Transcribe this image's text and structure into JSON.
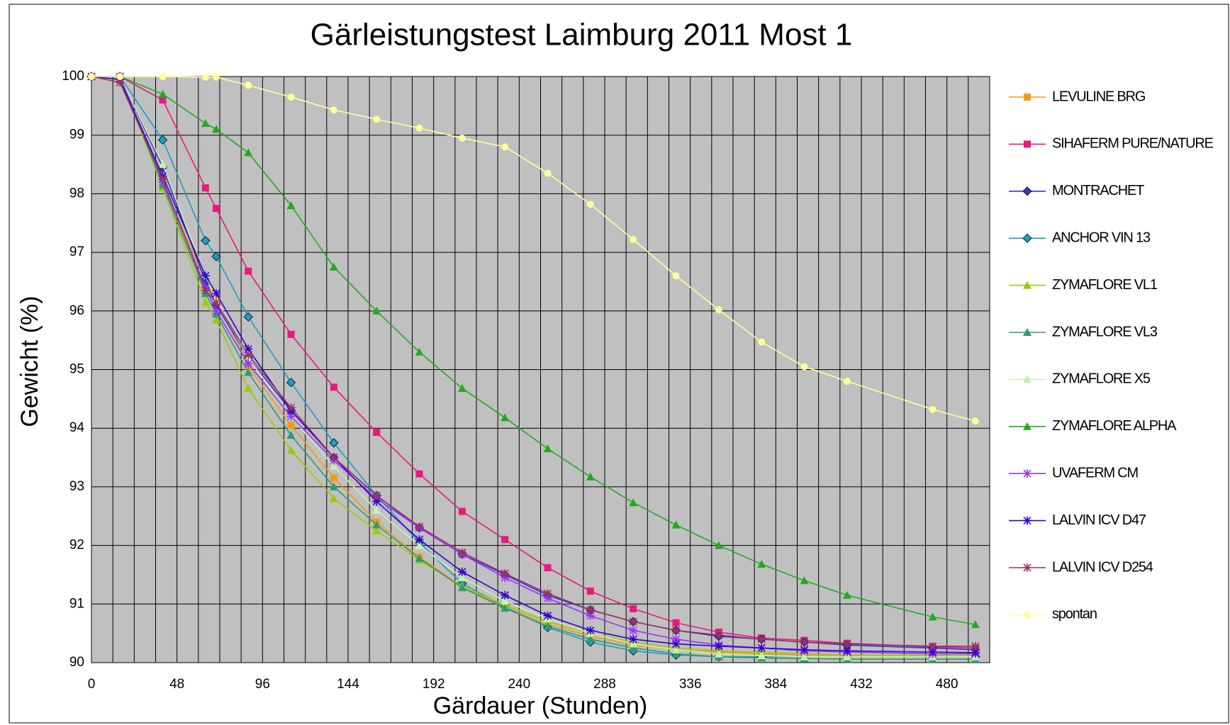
{
  "chart_data": {
    "type": "line",
    "title": "Gärleistungstest Laimburg 2011 Most 1",
    "xlabel": "Gärdauer (Stunden)",
    "ylabel": "Gewicht (%)",
    "x": [
      0,
      16,
      40,
      64,
      70,
      88,
      112,
      136,
      160,
      184,
      208,
      232,
      256,
      280,
      304,
      328,
      352,
      376,
      400,
      424,
      472,
      496
    ],
    "xlim": [
      0,
      504
    ],
    "ylim": [
      90,
      100
    ],
    "xticks": [
      0,
      48,
      96,
      144,
      192,
      240,
      288,
      336,
      384,
      432,
      480
    ],
    "xminorticks": [
      12,
      24,
      36,
      60,
      72,
      84,
      108,
      120,
      132,
      156,
      168,
      180,
      204,
      216,
      228,
      252,
      264,
      276,
      300,
      312,
      324,
      348,
      360,
      372,
      396,
      408,
      420,
      444,
      456,
      468,
      492
    ],
    "yticks": [
      90,
      91,
      92,
      93,
      94,
      95,
      96,
      97,
      98,
      99,
      100
    ],
    "grid": true,
    "legend": "right",
    "series": [
      {
        "name": "LEVULINE BRG",
        "color": "#f39c12",
        "marker": "square",
        "values": [
          100,
          100,
          98.2,
          96.5,
          96.2,
          95.05,
          94.05,
          93.15,
          92.4,
          91.8,
          91.3,
          90.95,
          90.65,
          90.45,
          90.3,
          90.22,
          90.18,
          90.15,
          90.13,
          90.12,
          90.12,
          90.12
        ]
      },
      {
        "name": "SIHAFERM PURE/NATURE",
        "color": "#e8197f",
        "marker": "square",
        "values": [
          100,
          100,
          99.6,
          98.1,
          97.75,
          96.68,
          95.6,
          94.7,
          93.93,
          93.22,
          92.58,
          92.1,
          91.62,
          91.22,
          90.92,
          90.68,
          90.52,
          90.42,
          90.38,
          90.33,
          90.27,
          90.25
        ]
      },
      {
        "name": "MONTRACHET",
        "color": "#3333cc",
        "marker": "diamond",
        "values": [
          100,
          100,
          98.45,
          96.5,
          96.1,
          95.2,
          94.3,
          93.5,
          92.85,
          92.3,
          91.85,
          91.5,
          91.15,
          90.9,
          90.7,
          90.55,
          90.45,
          90.4,
          90.35,
          90.3,
          90.25,
          90.22
        ]
      },
      {
        "name": "ANCHOR VIN 13",
        "color": "#1aa0c0",
        "marker": "diamond",
        "values": [
          100,
          100,
          98.92,
          97.2,
          96.93,
          95.9,
          94.78,
          93.75,
          92.85,
          92.05,
          91.35,
          90.95,
          90.6,
          90.35,
          90.2,
          90.13,
          90.1,
          90.1,
          90.1,
          90.1,
          90.1,
          90.1
        ]
      },
      {
        "name": "ZYMAFLORE VL1",
        "color": "#99cc00",
        "marker": "triangle",
        "values": [
          100,
          100,
          98.1,
          96.15,
          95.85,
          94.68,
          93.62,
          92.8,
          92.25,
          91.75,
          91.3,
          90.98,
          90.7,
          90.5,
          90.35,
          90.25,
          90.2,
          90.17,
          90.15,
          90.13,
          90.12,
          90.12
        ]
      },
      {
        "name": "ZYMAFLORE VL3",
        "color": "#2e9b73",
        "marker": "triangle",
        "values": [
          100,
          100,
          98.15,
          96.3,
          95.95,
          94.95,
          93.88,
          93.0,
          92.35,
          91.78,
          91.28,
          90.93,
          90.62,
          90.4,
          90.25,
          90.15,
          90.1,
          90.08,
          90.07,
          90.06,
          90.06,
          90.06
        ]
      },
      {
        "name": "ZYMAFLORE X5",
        "color": "#c8f0b0",
        "marker": "triangle",
        "values": [
          100,
          100,
          98.5,
          96.6,
          96.2,
          95.2,
          94.2,
          93.35,
          92.6,
          92.0,
          91.45,
          91.05,
          90.75,
          90.5,
          90.32,
          90.22,
          90.15,
          90.12,
          90.1,
          90.1,
          90.1,
          90.1
        ]
      },
      {
        "name": "ZYMAFLORE ALPHA",
        "color": "#22aa22",
        "marker": "triangle",
        "values": [
          100,
          100,
          99.7,
          99.2,
          99.1,
          98.7,
          97.8,
          96.75,
          96.0,
          95.3,
          94.68,
          94.18,
          93.65,
          93.17,
          92.73,
          92.35,
          92.0,
          91.68,
          91.4,
          91.15,
          90.78,
          90.65
        ]
      },
      {
        "name": "UVAFERM CM",
        "color": "#9933ff",
        "marker": "star",
        "values": [
          100,
          100,
          98.2,
          96.4,
          96.0,
          95.1,
          94.2,
          93.45,
          92.8,
          92.3,
          91.85,
          91.45,
          91.1,
          90.8,
          90.55,
          90.4,
          90.3,
          90.25,
          90.2,
          90.18,
          90.15,
          90.15
        ]
      },
      {
        "name": "LALVIN ICV D47",
        "color": "#3300cc",
        "marker": "star",
        "values": [
          100,
          99.95,
          98.3,
          96.6,
          96.3,
          95.35,
          94.3,
          93.5,
          92.75,
          92.1,
          91.55,
          91.15,
          90.8,
          90.55,
          90.4,
          90.32,
          90.28,
          90.25,
          90.22,
          90.2,
          90.18,
          90.17
        ]
      },
      {
        "name": "LALVIN ICV D254",
        "color": "#993366",
        "marker": "star",
        "values": [
          100,
          99.9,
          98.25,
          96.35,
          96.15,
          95.25,
          94.35,
          93.5,
          92.85,
          92.32,
          91.88,
          91.52,
          91.18,
          90.9,
          90.7,
          90.55,
          90.47,
          90.4,
          90.35,
          90.32,
          90.28,
          90.28
        ]
      },
      {
        "name": "spontan",
        "color": "#ffff99",
        "marker": "circle",
        "values": [
          100,
          100,
          100,
          99.99,
          99.99,
          99.85,
          99.65,
          99.43,
          99.27,
          99.12,
          98.95,
          98.8,
          98.35,
          97.82,
          97.22,
          96.6,
          96.02,
          95.47,
          95.05,
          94.8,
          94.32,
          94.12
        ]
      }
    ]
  }
}
